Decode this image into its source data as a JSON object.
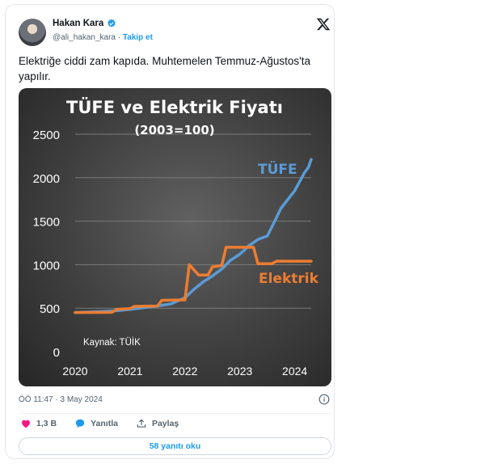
{
  "author": {
    "name": "Hakan Kara",
    "handle": "@ali_hakan_kara",
    "separator": "·",
    "follow_label": "Takip et"
  },
  "tweet": {
    "text": "Elektriğe ciddi zam kapıda. Muhtemelen Temmuz-Ağustos'ta yapılır.",
    "timestamp": "ÖÖ 11:47 · 3 May 2024"
  },
  "actions": {
    "likes": "1,3 B",
    "reply_label": "Yanıtla",
    "share_label": "Paylaş",
    "read_replies": "58 yanıtı oku"
  },
  "colors": {
    "tufe": "#5b9bd5",
    "elektrik": "#ed7d31",
    "accent": "#1d9bf0",
    "like": "#f91880"
  },
  "chart_data": {
    "type": "line",
    "title": "TÜFE ve Elektrik Fiyatı",
    "subtitle": "(2003=100)",
    "source": "Kaynak: TÜİK",
    "xlim": [
      2020,
      2024.3
    ],
    "ylim": [
      0,
      2500
    ],
    "x_ticks": [
      2020,
      2021,
      2022,
      2023,
      2024
    ],
    "y_ticks": [
      0,
      500,
      1000,
      1500,
      2000,
      2500
    ],
    "grid": true,
    "series": [
      {
        "name": "TÜFE",
        "color": "#5b9bd5",
        "points": [
          [
            2020,
            450
          ],
          [
            2020.25,
            455
          ],
          [
            2020.5,
            462
          ],
          [
            2020.75,
            470
          ],
          [
            2021,
            485
          ],
          [
            2021.25,
            505
          ],
          [
            2021.5,
            525
          ],
          [
            2021.75,
            550
          ],
          [
            2022,
            620
          ],
          [
            2022.17,
            720
          ],
          [
            2022.33,
            800
          ],
          [
            2022.5,
            870
          ],
          [
            2022.67,
            950
          ],
          [
            2022.83,
            1050
          ],
          [
            2023,
            1120
          ],
          [
            2023.17,
            1220
          ],
          [
            2023.33,
            1290
          ],
          [
            2023.5,
            1330
          ],
          [
            2023.58,
            1430
          ],
          [
            2023.75,
            1650
          ],
          [
            2024,
            1850
          ],
          [
            2024.17,
            2050
          ],
          [
            2024.25,
            2120
          ],
          [
            2024.3,
            2210
          ]
        ]
      },
      {
        "name": "Elektrik",
        "color": "#ed7d31",
        "points": [
          [
            2020,
            450
          ],
          [
            2020.67,
            452
          ],
          [
            2020.75,
            485
          ],
          [
            2021,
            495
          ],
          [
            2021.08,
            520
          ],
          [
            2021.5,
            525
          ],
          [
            2021.58,
            590
          ],
          [
            2022,
            595
          ],
          [
            2022.08,
            1000
          ],
          [
            2022.25,
            880
          ],
          [
            2022.42,
            880
          ],
          [
            2022.5,
            975
          ],
          [
            2022.67,
            990
          ],
          [
            2022.75,
            1200
          ],
          [
            2023.25,
            1200
          ],
          [
            2023.33,
            1010
          ],
          [
            2023.58,
            1010
          ],
          [
            2023.67,
            1040
          ],
          [
            2024.3,
            1040
          ]
        ]
      }
    ]
  }
}
